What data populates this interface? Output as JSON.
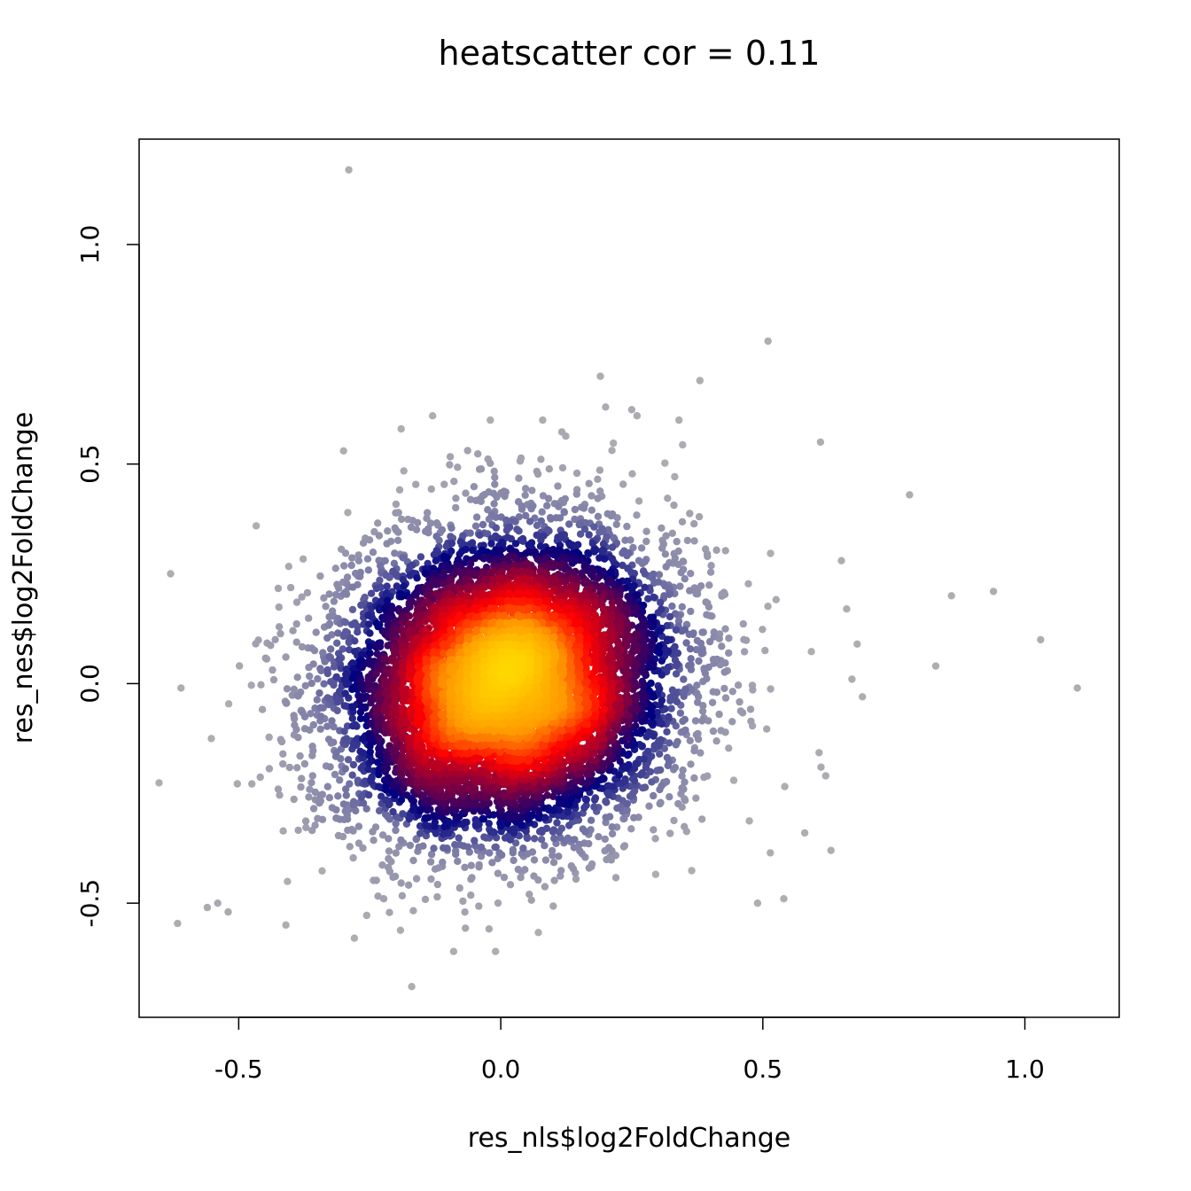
{
  "chart_data": {
    "type": "scatter",
    "title": "heatscatter  cor =  0.11",
    "xlabel": "res_nls$log2FoldChange",
    "ylabel": "res_nes$log2FoldChange",
    "xlim": [
      -0.69,
      1.18
    ],
    "ylim": [
      -0.76,
      1.24
    ],
    "x_ticks": [
      -0.5,
      0.0,
      0.5,
      1.0
    ],
    "x_tick_labels": [
      "-0.5",
      "0.0",
      "0.5",
      "1.0"
    ],
    "y_ticks": [
      -0.5,
      0.0,
      0.5,
      1.0
    ],
    "y_tick_labels": [
      "-0.5",
      "0.0",
      "0.5",
      "1.0"
    ],
    "grid": false,
    "legend": "none",
    "density_colormap": [
      "#b3b3b3",
      "#8080a8",
      "#00007f",
      "#800040",
      "#ff0000",
      "#ff9900",
      "#ffd700"
    ],
    "cloud": {
      "center_x": 0.01,
      "center_y": 0.0,
      "sd_x": 0.16,
      "sd_y": 0.17,
      "n_points": 9000,
      "correlation": 0.11
    },
    "outliers": [
      {
        "x": -0.29,
        "y": 1.17
      },
      {
        "x": 0.51,
        "y": 0.78
      },
      {
        "x": 0.78,
        "y": 0.43
      },
      {
        "x": 1.1,
        "y": -0.01
      },
      {
        "x": 1.03,
        "y": 0.1
      },
      {
        "x": 0.94,
        "y": 0.21
      },
      {
        "x": 0.86,
        "y": 0.2
      },
      {
        "x": 0.83,
        "y": 0.04
      },
      {
        "x": 0.69,
        "y": -0.03
      },
      {
        "x": 0.61,
        "y": 0.55
      },
      {
        "x": 0.65,
        "y": 0.28
      },
      {
        "x": 0.66,
        "y": 0.17
      },
      {
        "x": 0.68,
        "y": 0.09
      },
      {
        "x": 0.67,
        "y": 0.01
      },
      {
        "x": 0.63,
        "y": -0.38
      },
      {
        "x": 0.62,
        "y": -0.21
      },
      {
        "x": 0.54,
        "y": -0.49
      },
      {
        "x": 0.49,
        "y": -0.5
      },
      {
        "x": 0.58,
        "y": -0.34
      },
      {
        "x": -0.63,
        "y": 0.25
      },
      {
        "x": -0.61,
        "y": -0.01
      },
      {
        "x": -0.54,
        "y": -0.5
      },
      {
        "x": -0.52,
        "y": -0.52
      },
      {
        "x": -0.56,
        "y": -0.51
      },
      {
        "x": -0.41,
        "y": -0.55
      },
      {
        "x": -0.17,
        "y": -0.69
      },
      {
        "x": -0.01,
        "y": -0.61
      },
      {
        "x": -0.09,
        "y": -0.61
      },
      {
        "x": 0.19,
        "y": 0.7
      },
      {
        "x": 0.38,
        "y": 0.69
      },
      {
        "x": 0.2,
        "y": 0.63
      },
      {
        "x": -0.13,
        "y": 0.61
      },
      {
        "x": -0.02,
        "y": 0.6
      },
      {
        "x": 0.08,
        "y": 0.6
      },
      {
        "x": 0.34,
        "y": 0.6
      },
      {
        "x": -0.3,
        "y": 0.53
      },
      {
        "x": -0.19,
        "y": 0.58
      },
      {
        "x": 0.26,
        "y": 0.61
      }
    ]
  }
}
